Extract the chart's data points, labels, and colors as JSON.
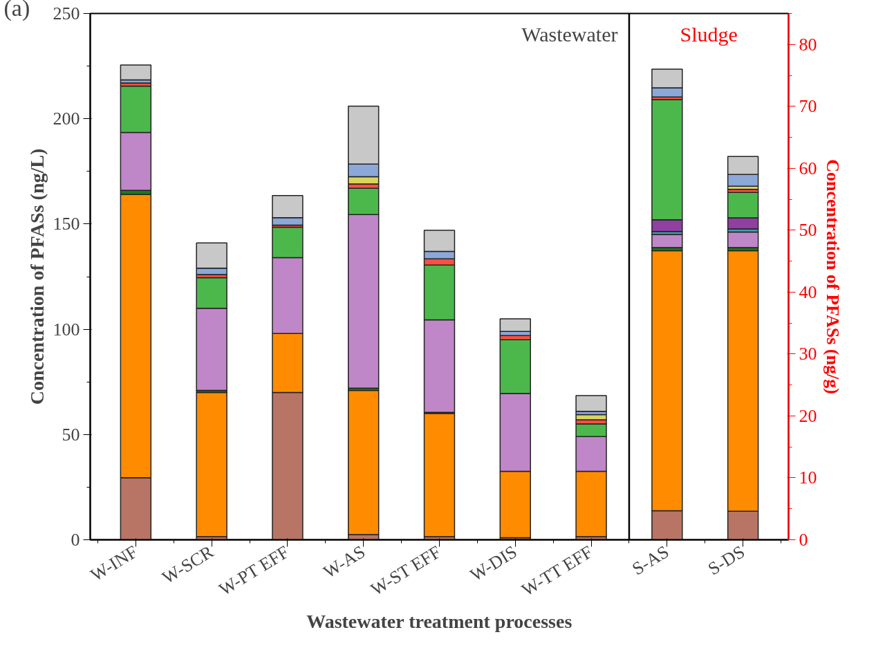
{
  "chart_data": {
    "type": "bar",
    "stacked": true,
    "xlabel": "Wastewater treatment processes",
    "ylabel": "Concentration of PFASs (ng/L)",
    "y2label": "Concentration of PFASs (ng/g)",
    "categories": [
      "W-INF",
      "W-SCR",
      "W-PT EFF",
      "W-AS",
      "W-ST EFF",
      "W-DIS",
      "W-TT EFF",
      "S-AS",
      "S-DS"
    ],
    "ylim": [
      0,
      250
    ],
    "yticks": [
      0,
      50,
      100,
      150,
      200,
      250
    ],
    "y2lim": [
      0,
      85
    ],
    "y2ticks": [
      0,
      10,
      20,
      30,
      40,
      50,
      60,
      70,
      80
    ],
    "grid": false,
    "annotations": [
      "(a)",
      "Wastewater",
      "Sludge"
    ],
    "series": [
      {
        "color": "#b87565",
        "values": [
          29.5,
          1.5,
          70,
          2.5,
          1.5,
          1,
          1.5,
          null,
          null
        ]
      },
      {
        "color": "#ff8c00",
        "values": [
          134.5,
          68.5,
          28,
          68.5,
          58.5,
          31.5,
          31,
          null,
          null
        ]
      },
      {
        "color": "#1a7a1a",
        "values": [
          2,
          1,
          null,
          1,
          0.5,
          null,
          null,
          null,
          null
        ]
      },
      {
        "color": "#bf87c8",
        "values": [
          27.5,
          39,
          36,
          82.5,
          44,
          37,
          16.5,
          null,
          null
        ]
      },
      {
        "color": "#4cb84c",
        "values": [
          22,
          14.5,
          14.5,
          12.5,
          26,
          25.5,
          6,
          null,
          null
        ]
      },
      {
        "color": "#ff5040",
        "values": [
          1.5,
          1.5,
          1,
          2,
          3,
          2,
          2,
          null,
          null
        ]
      },
      {
        "color": "#d8d45c",
        "values": [
          null,
          null,
          null,
          3.5,
          null,
          null,
          2.5,
          null,
          null
        ]
      },
      {
        "color": "#8ca8d8",
        "values": [
          1.5,
          3,
          3.5,
          6,
          3.5,
          2,
          1.5,
          null,
          null
        ]
      },
      {
        "color": "#c8c8c8",
        "values": [
          7,
          12,
          10.5,
          27.5,
          10,
          6,
          7.5,
          null,
          null
        ]
      },
      {
        "color": "#b87565",
        "axis": "y2",
        "values": [
          null,
          null,
          null,
          null,
          null,
          null,
          null,
          4.7,
          4.6
        ]
      },
      {
        "color": "#ff8c00",
        "axis": "y2",
        "values": [
          null,
          null,
          null,
          null,
          null,
          null,
          null,
          42,
          42.1
        ]
      },
      {
        "color": "#1a7a1a",
        "axis": "y2",
        "values": [
          null,
          null,
          null,
          null,
          null,
          null,
          null,
          0.5,
          0.5
        ]
      },
      {
        "color": "#bf87c8",
        "axis": "y2",
        "values": [
          null,
          null,
          null,
          null,
          null,
          null,
          null,
          2.1,
          2.5
        ]
      },
      {
        "color": "#3fa0b0",
        "axis": "y2",
        "values": [
          null,
          null,
          null,
          null,
          null,
          null,
          null,
          0.5,
          0.5
        ]
      },
      {
        "color": "#9040a0",
        "axis": "y2",
        "values": [
          null,
          null,
          null,
          null,
          null,
          null,
          null,
          1.9,
          1.8
        ]
      },
      {
        "color": "#4cb84c",
        "axis": "y2",
        "values": [
          null,
          null,
          null,
          null,
          null,
          null,
          null,
          19.4,
          4.1
        ]
      },
      {
        "color": "#ff5040",
        "axis": "y2",
        "values": [
          null,
          null,
          null,
          null,
          null,
          null,
          null,
          0.4,
          0.5
        ]
      },
      {
        "color": "#d8d45c",
        "axis": "y2",
        "values": [
          null,
          null,
          null,
          null,
          null,
          null,
          null,
          null,
          0.5
        ]
      },
      {
        "color": "#8ca8d8",
        "axis": "y2",
        "values": [
          null,
          null,
          null,
          null,
          null,
          null,
          null,
          1.5,
          1.9
        ]
      },
      {
        "color": "#c8c8c8",
        "axis": "y2",
        "values": [
          null,
          null,
          null,
          null,
          null,
          null,
          null,
          3,
          2.9
        ]
      }
    ]
  }
}
